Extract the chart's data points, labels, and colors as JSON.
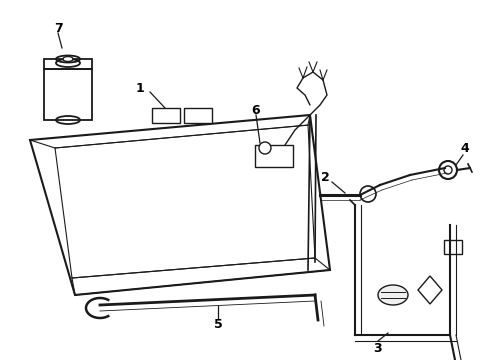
{
  "bg_color": "#ffffff",
  "line_color": "#1a1a1a",
  "lw": 1.0,
  "fig_width": 4.9,
  "fig_height": 3.6,
  "dpi": 100
}
